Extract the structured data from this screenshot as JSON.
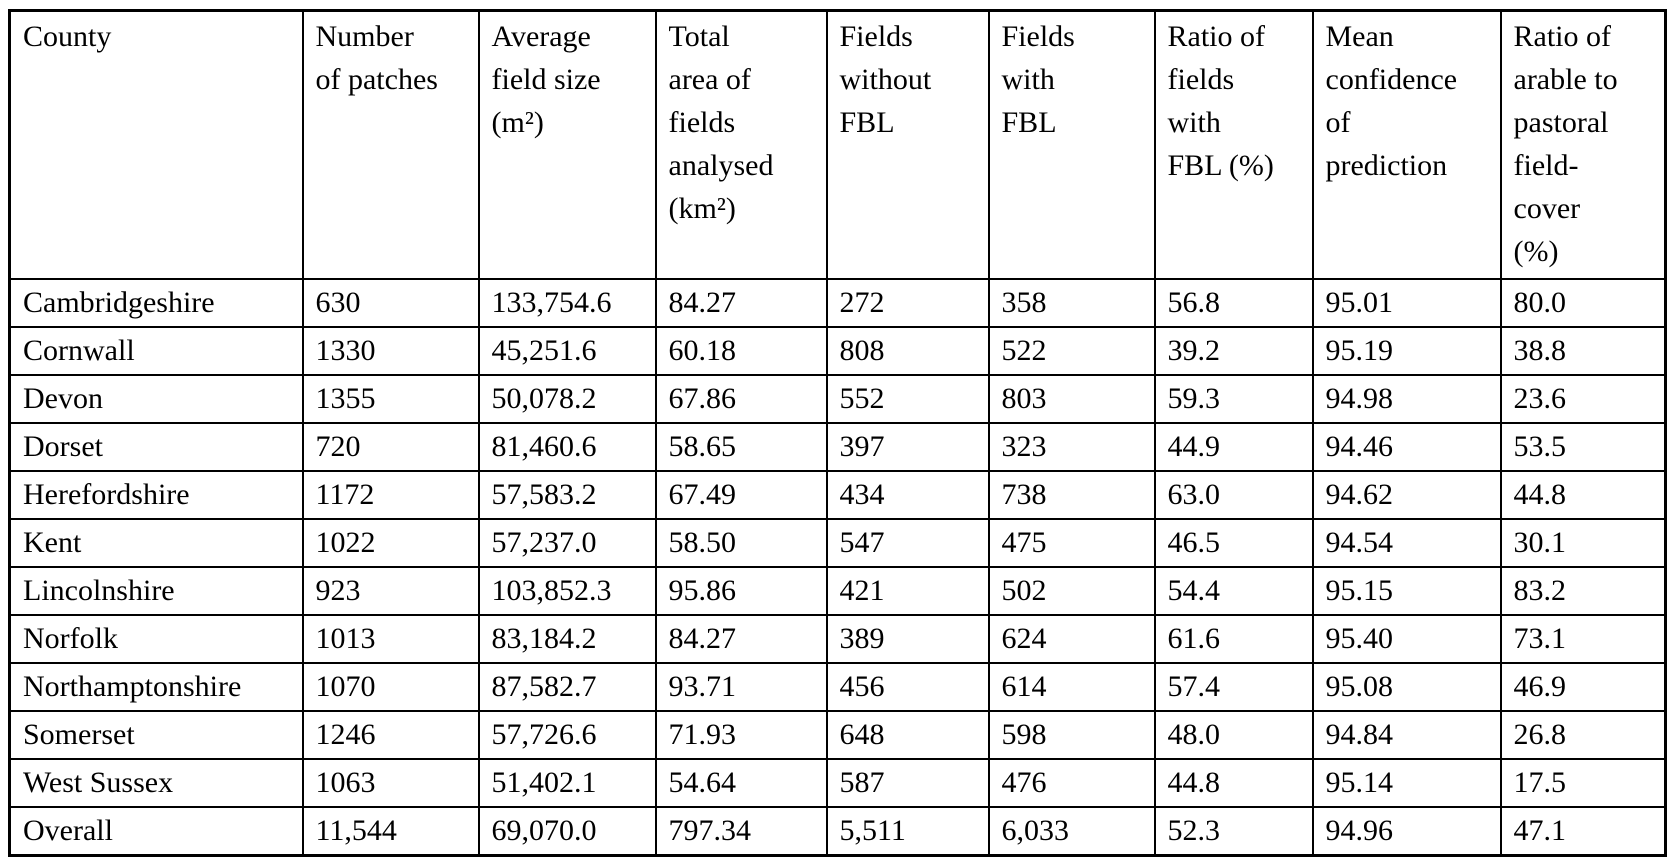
{
  "table": {
    "header": [
      [
        "County"
      ],
      [
        "Number",
        "of patches"
      ],
      [
        "Average",
        "field size",
        "(m²)"
      ],
      [
        "Total",
        "area of",
        "fields",
        "analysed",
        "(km²)"
      ],
      [
        "Fields",
        "without",
        "FBL"
      ],
      [
        "Fields",
        "with",
        "FBL"
      ],
      [
        "Ratio of",
        "fields",
        "with",
        "FBL (%)"
      ],
      [
        "Mean",
        "confidence",
        "of",
        "prediction"
      ],
      [
        "Ratio of",
        "arable to",
        "pastoral",
        "field-",
        "cover",
        "(%)"
      ]
    ],
    "rows": [
      [
        "Cambridgeshire",
        "630",
        "133,754.6",
        "84.27",
        "272",
        "358",
        "56.8",
        "95.01",
        "80.0"
      ],
      [
        "Cornwall",
        "1330",
        "45,251.6",
        "60.18",
        "808",
        "522",
        "39.2",
        "95.19",
        "38.8"
      ],
      [
        "Devon",
        "1355",
        "50,078.2",
        "67.86",
        "552",
        "803",
        "59.3",
        "94.98",
        "23.6"
      ],
      [
        "Dorset",
        "720",
        "81,460.6",
        "58.65",
        "397",
        "323",
        "44.9",
        "94.46",
        "53.5"
      ],
      [
        "Herefordshire",
        "1172",
        "57,583.2",
        "67.49",
        "434",
        "738",
        "63.0",
        "94.62",
        "44.8"
      ],
      [
        "Kent",
        "1022",
        "57,237.0",
        "58.50",
        "547",
        "475",
        "46.5",
        "94.54",
        "30.1"
      ],
      [
        "Lincolnshire",
        "923",
        "103,852.3",
        "95.86",
        "421",
        "502",
        "54.4",
        "95.15",
        "83.2"
      ],
      [
        "Norfolk",
        "1013",
        "83,184.2",
        "84.27",
        "389",
        "624",
        "61.6",
        "95.40",
        "73.1"
      ],
      [
        "Northamptonshire",
        "1070",
        "87,582.7",
        "93.71",
        "456",
        "614",
        "57.4",
        "95.08",
        "46.9"
      ],
      [
        "Somerset",
        "1246",
        "57,726.6",
        "71.93",
        "648",
        "598",
        "48.0",
        "94.84",
        "26.8"
      ],
      [
        "West Sussex",
        "1063",
        "51,402.1",
        "54.64",
        "587",
        "476",
        "44.8",
        "95.14",
        "17.5"
      ],
      [
        "Overall",
        "11,544",
        "69,070.0",
        "797.34",
        "5,511",
        "6,033",
        "52.3",
        "94.96",
        "47.1"
      ]
    ]
  },
  "colors": {
    "border": "#000000",
    "text": "#000000",
    "background": "#ffffff"
  }
}
